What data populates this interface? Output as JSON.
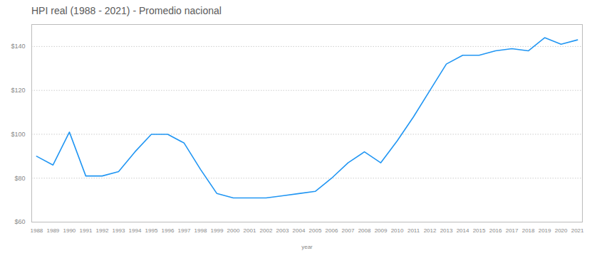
{
  "chart_data": {
    "type": "line",
    "title": "HPI real (1988 - 2021) - Promedio nacional",
    "xlabel": "year",
    "x": [
      1988,
      1989,
      1990,
      1991,
      1992,
      1993,
      1994,
      1995,
      1996,
      1997,
      1998,
      1999,
      2000,
      2001,
      2002,
      2003,
      2004,
      2005,
      2006,
      2007,
      2008,
      2009,
      2010,
      2011,
      2012,
      2013,
      2014,
      2015,
      2016,
      2017,
      2018,
      2019,
      2020,
      2021
    ],
    "values": [
      90,
      86,
      101,
      81,
      81,
      83,
      92,
      100,
      100,
      96,
      84,
      73,
      71,
      71,
      71,
      72,
      73,
      74,
      80,
      87,
      92,
      87,
      97,
      108,
      120,
      132,
      136,
      136,
      138,
      139,
      138,
      144,
      141,
      143
    ],
    "color": "#2196F3",
    "xlim": [
      1987.7,
      2021.3
    ],
    "xticks": [
      1988,
      1989,
      1990,
      1991,
      1992,
      1993,
      1994,
      1995,
      1996,
      1997,
      1998,
      1999,
      2000,
      2001,
      2002,
      2003,
      2004,
      2005,
      2006,
      2007,
      2008,
      2009,
      2010,
      2011,
      2012,
      2013,
      2014,
      2015,
      2016,
      2017,
      2018,
      2019,
      2020,
      2021
    ],
    "ylim": [
      60,
      150
    ],
    "yticks": [
      {
        "value": 60,
        "label": "$60"
      },
      {
        "value": 80,
        "label": "$80"
      },
      {
        "value": 100,
        "label": "$100"
      },
      {
        "value": 120,
        "label": "$120"
      },
      {
        "value": 140,
        "label": "$140"
      }
    ],
    "grid": true
  }
}
